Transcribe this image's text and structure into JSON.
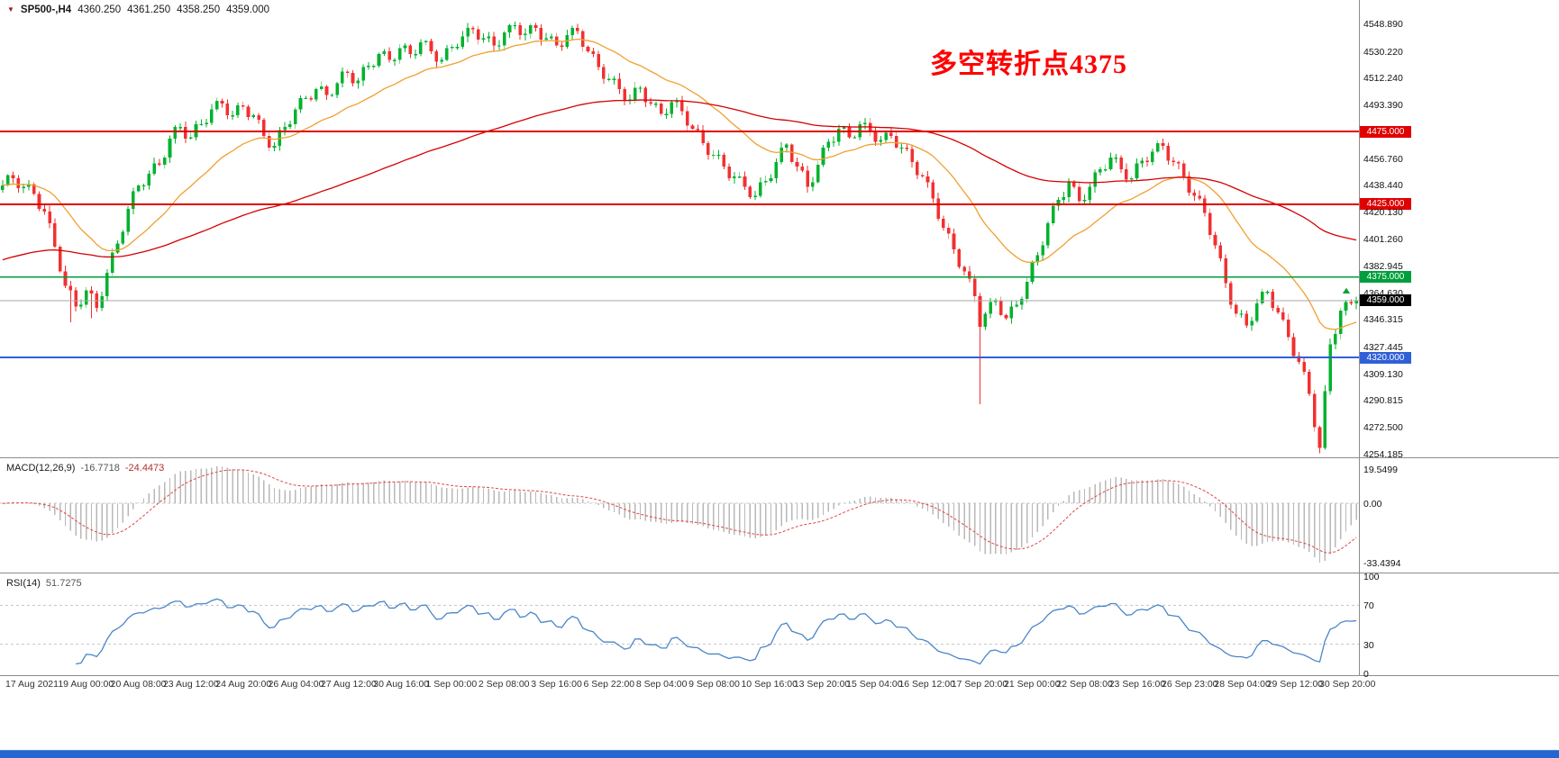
{
  "ui": {
    "header": {
      "symbol": "SP500-,H4",
      "open": "4360.250",
      "high": "4361.250",
      "low": "4358.250",
      "close": "4359.000"
    },
    "annotation": {
      "text": "多空转折点4375",
      "color": "#ff0000"
    }
  },
  "chart_data": [
    {
      "type": "candlestick",
      "symbol": "SP500-",
      "timeframe": "H4",
      "title": "SP500-,H4",
      "ylim": [
        4246,
        4560
      ],
      "grid": false,
      "colors": {
        "up": "#00b22d",
        "down": "#f23030",
        "ma_fast": "#f0a030",
        "ma_slow": "#d40000",
        "current_line": "#aaaaaa"
      },
      "ma_fast": {
        "name": "MA fast",
        "period": 24
      },
      "ma_slow": {
        "name": "MA slow",
        "period": 110,
        "seed": 4386
      },
      "first_open": 4435,
      "closes": [
        4438,
        4445,
        4443,
        4436,
        4437,
        4439,
        4432,
        4422,
        4420,
        4412,
        4396,
        4379,
        4369,
        4366,
        4355,
        4356,
        4366,
        4364,
        4354,
        4362,
        4378,
        4392,
        4398,
        4406,
        4422,
        4434,
        4438,
        4438,
        4446,
        4453,
        4452,
        4457,
        4470,
        4478,
        4478,
        4470,
        4471,
        4480,
        4480,
        4481,
        4490,
        4496,
        4494,
        4486,
        4486,
        4493,
        4492,
        4485,
        4486,
        4483,
        4472,
        4464,
        4465,
        4476,
        4478,
        4480,
        4490,
        4498,
        4498,
        4497,
        4504,
        4506,
        4500,
        4500,
        4508,
        4516,
        4515,
        4508,
        4510,
        4519,
        4520,
        4520,
        4528,
        4530,
        4524,
        4524,
        4532,
        4534,
        4528,
        4528,
        4536,
        4537,
        4530,
        4523,
        4524,
        4532,
        4533,
        4533,
        4540,
        4546,
        4545,
        4538,
        4539,
        4540,
        4534,
        4534,
        4543,
        4548,
        4548,
        4541,
        4542,
        4548,
        4546,
        4538,
        4539,
        4540,
        4534,
        4533,
        4541,
        4546,
        4544,
        4533,
        4530,
        4528,
        4519,
        4511,
        4511,
        4511,
        4504,
        4496,
        4497,
        4505,
        4505,
        4495,
        4494,
        4494,
        4487,
        4487,
        4495,
        4496,
        4489,
        4479,
        4477,
        4476,
        4467,
        4459,
        4459,
        4459,
        4451,
        4443,
        4444,
        4444,
        4437,
        4430,
        4431,
        4440,
        4441,
        4443,
        4454,
        4464,
        4466,
        4454,
        4451,
        4448,
        4437,
        4440,
        4452,
        4464,
        4468,
        4468,
        4477,
        4478,
        4471,
        4471,
        4480,
        4481,
        4475,
        4468,
        4469,
        4474,
        4472,
        4464,
        4464,
        4463,
        4454,
        4445,
        4444,
        4440,
        4429,
        4415,
        4409,
        4405,
        4394,
        4382,
        4379,
        4374,
        4362,
        4341,
        4350,
        4358,
        4359,
        4349,
        4347,
        4355,
        4356,
        4360,
        4372,
        4385,
        4390,
        4397,
        4412,
        4424,
        4428,
        4430,
        4440,
        4437,
        4427,
        4428,
        4437,
        4447,
        4449,
        4449,
        4457,
        4457,
        4449,
        4442,
        4443,
        4453,
        4455,
        4454,
        4461,
        4467,
        4465,
        4455,
        4454,
        4453,
        4444,
        4433,
        4431,
        4429,
        4419,
        4404,
        4397,
        4388,
        4371,
        4356,
        4350,
        4350,
        4342,
        4345,
        4357,
        4365,
        4365,
        4354,
        4351,
        4346,
        4334,
        4321,
        4317,
        4310,
        4295,
        4272,
        4258,
        4297,
        4329,
        4336,
        4352,
        4358,
        4357,
        4359
      ],
      "wick_overrides": {
        "13": {
          "low": 4344
        },
        "17": {
          "low": 4347
        },
        "97": {
          "high": 4548.9
        },
        "144": {
          "low": 4428
        },
        "187": {
          "low": 4288
        },
        "252": {
          "low": 4254.2
        }
      },
      "levels": [
        {
          "price": 4475,
          "label": "4475.000",
          "color": "#e00000"
        },
        {
          "price": 4425,
          "label": "4425.000",
          "color": "#e00000"
        },
        {
          "price": 4375,
          "label": "4375.000",
          "color": "#009e3c"
        },
        {
          "price": 4320,
          "label": "4320.000",
          "color": "#3060d8"
        }
      ],
      "current": {
        "price": 4359,
        "label": "4359.000",
        "color": "#000000"
      },
      "y_ticks": [
        "4548.890",
        "4530.220",
        "4512.240",
        "4493.390",
        "4456.760",
        "4438.440",
        "4420.130",
        "4401.260",
        "4382.945",
        "4364.630",
        "4346.315",
        "4327.445",
        "4309.130",
        "4290.815",
        "4272.500",
        "4254.185"
      ],
      "x_labels": [
        "17 Aug 2021",
        "19 Aug 00:00",
        "20 Aug 08:00",
        "23 Aug 12:00",
        "24 Aug 20:00",
        "26 Aug 04:00",
        "27 Aug 12:00",
        "30 Aug 16:00",
        "1 Sep 00:00",
        "2 Sep 08:00",
        "3 Sep 16:00",
        "6 Sep 22:00",
        "8 Sep 04:00",
        "9 Sep 08:00",
        "10 Sep 16:00",
        "13 Sep 20:00",
        "15 Sep 04:00",
        "16 Sep 12:00",
        "17 Sep 20:00",
        "21 Sep 00:00",
        "22 Sep 08:00",
        "23 Sep 16:00",
        "26 Sep 23:00",
        "28 Sep 04:00",
        "29 Sep 12:00",
        "30 Sep 20:00"
      ]
    },
    {
      "type": "bar",
      "title": "MACD(12,26,9)",
      "value_main": "-16.7718",
      "value_signal": "-24.4473",
      "params": [
        12,
        26,
        9
      ],
      "derived_from_closes": true,
      "ylim": [
        -38,
        24
      ],
      "y_ticks": [
        "19.5499",
        "0.00",
        "-33.4394"
      ],
      "colors": {
        "hist": "#b8b8b8",
        "signal": "#e04545",
        "zero": "#c8c8c8"
      }
    },
    {
      "type": "line",
      "title": "RSI(14)",
      "value": "51.7275",
      "period": 14,
      "derived_from_closes": true,
      "ylim": [
        0,
        100
      ],
      "levels": [
        70,
        30
      ],
      "y_ticks": [
        "100",
        "70",
        "30",
        "0"
      ],
      "colors": {
        "line": "#4a86c8",
        "level": "#c4c4c4"
      }
    }
  ]
}
